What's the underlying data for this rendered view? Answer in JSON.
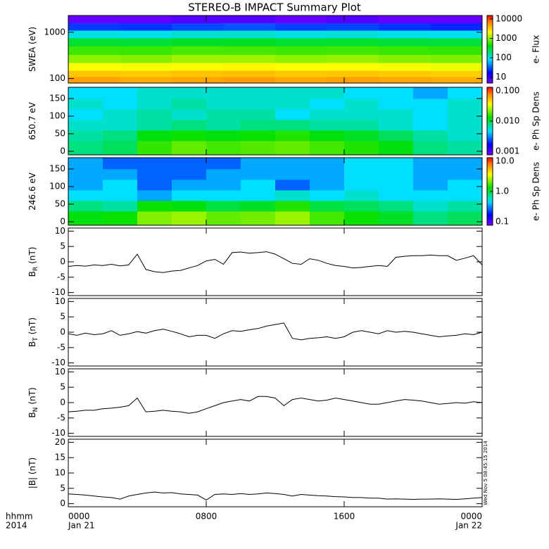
{
  "chart_data": [
    {
      "type": "heatmap",
      "title": "STEREO-B IMPACT Summary Plot",
      "ylabel": "SWEA (eV)",
      "zlabel": "e- Flux",
      "xlim": [
        0,
        24
      ],
      "xticks": [
        0,
        8,
        16,
        24
      ],
      "ylim": [
        80,
        2300
      ],
      "ylog": true,
      "yticks": [
        100,
        1000
      ],
      "y_edges": [
        80,
        110,
        150,
        220,
        330,
        500,
        750,
        1100,
        1600,
        2300
      ],
      "zlim": [
        5,
        15000
      ],
      "zlog": true,
      "zticks": [
        10,
        100,
        1000,
        10000
      ],
      "z": [
        [
          5000,
          4500,
          4800,
          5200,
          4600,
          5000,
          4700,
          4500
        ],
        [
          3500,
          3300,
          3600,
          3700,
          3400,
          3500,
          3300,
          3200
        ],
        [
          2000,
          1900,
          2100,
          2200,
          2000,
          2100,
          1900,
          1800
        ],
        [
          1000,
          950,
          1100,
          1100,
          1000,
          1050,
          950,
          900
        ],
        [
          600,
          580,
          650,
          640,
          600,
          620,
          580,
          560
        ],
        [
          300,
          290,
          320,
          330,
          300,
          310,
          290,
          280
        ],
        [
          100,
          95,
          110,
          115,
          100,
          105,
          95,
          90
        ],
        [
          25,
          24,
          28,
          30,
          26,
          27,
          24,
          22
        ],
        [
          6,
          6,
          7,
          7,
          6,
          7,
          6,
          6
        ]
      ]
    },
    {
      "type": "heatmap",
      "ylabel": "650.7 eV",
      "zlabel": "e- Ph Sp Dens",
      "xlim": [
        0,
        24
      ],
      "xticks": [
        0,
        8,
        16,
        24
      ],
      "ylim": [
        -10,
        182
      ],
      "yticks": [
        0,
        50,
        100,
        150
      ],
      "y_edges": [
        -10,
        30,
        60,
        90,
        120,
        150,
        182
      ],
      "zlim": [
        0.001,
        0.1
      ],
      "zlog": true,
      "zticks": [
        0.001,
        {
          "value": 0.01,
          "label": "0.010"
        },
        {
          "value": 0.1,
          "label": "0.100"
        }
      ],
      "z": [
        [
          0.008,
          0.009,
          0.015,
          0.018,
          0.016,
          0.017,
          0.018,
          0.016,
          0.014,
          0.012,
          0.008,
          0.007
        ],
        [
          0.007,
          0.008,
          0.012,
          0.013,
          0.012,
          0.013,
          0.014,
          0.012,
          0.011,
          0.009,
          0.007,
          0.006
        ],
        [
          0.006,
          0.006,
          0.007,
          0.008,
          0.007,
          0.008,
          0.008,
          0.007,
          0.007,
          0.006,
          0.005,
          0.006
        ],
        [
          0.005,
          0.006,
          0.007,
          0.006,
          0.007,
          0.007,
          0.005,
          0.006,
          0.006,
          0.006,
          0.005,
          0.006
        ],
        [
          0.006,
          0.005,
          0.006,
          0.007,
          0.006,
          0.006,
          0.006,
          0.005,
          0.006,
          0.005,
          0.005,
          0.006
        ],
        [
          0.005,
          0.005,
          0.006,
          0.006,
          0.006,
          0.006,
          0.006,
          0.006,
          0.005,
          0.005,
          0.004,
          0.005
        ]
      ]
    },
    {
      "type": "heatmap",
      "ylabel": "246.6 eV",
      "zlabel": "e- Ph Sp Dens",
      "xlim": [
        0,
        24
      ],
      "xticks": [
        0,
        8,
        16,
        24
      ],
      "ylim": [
        -10,
        182
      ],
      "yticks": [
        0,
        50,
        100,
        150
      ],
      "y_edges": [
        -10,
        30,
        60,
        90,
        120,
        150,
        182
      ],
      "zlim": [
        0.1,
        10
      ],
      "zlog": true,
      "zticks": [
        0.1,
        {
          "value": 1,
          "label": "1.0"
        },
        {
          "value": 10,
          "label": "10.0"
        }
      ],
      "z": [
        [
          1.2,
          1.3,
          2.0,
          2.2,
          1.8,
          1.9,
          2.2,
          1.6,
          1.3,
          1.1,
          0.8,
          0.9
        ],
        [
          0.8,
          0.7,
          1.3,
          1.2,
          1.0,
          1.1,
          1.4,
          1.0,
          0.9,
          0.8,
          0.6,
          0.7
        ],
        [
          0.5,
          0.5,
          0.4,
          0.5,
          0.5,
          0.5,
          0.6,
          0.5,
          0.6,
          0.5,
          0.5,
          0.5
        ],
        [
          0.4,
          0.5,
          0.3,
          0.4,
          0.4,
          0.5,
          0.3,
          0.4,
          0.5,
          0.5,
          0.4,
          0.5
        ],
        [
          0.4,
          0.4,
          0.3,
          0.3,
          0.4,
          0.4,
          0.4,
          0.4,
          0.5,
          0.5,
          0.4,
          0.4
        ],
        [
          0.4,
          0.3,
          0.3,
          0.3,
          0.3,
          0.4,
          0.4,
          0.4,
          0.5,
          0.5,
          0.4,
          0.4
        ]
      ]
    },
    {
      "type": "line",
      "ylabel": "B",
      "ylabel_sub": "R",
      "ylabel_unit": "(nT)",
      "color": "#000000",
      "xlim": [
        0,
        24
      ],
      "xticks": [
        0,
        8,
        16,
        24
      ],
      "ylim": [
        -11,
        11
      ],
      "yticks": [
        -10,
        -5,
        0,
        5,
        10
      ],
      "x": [
        0,
        0.5,
        1,
        1.5,
        2,
        2.5,
        3,
        3.5,
        4,
        4.5,
        5,
        5.5,
        6,
        6.5,
        7,
        7.5,
        8,
        8.5,
        9,
        9.5,
        10,
        10.5,
        11,
        11.5,
        12,
        12.5,
        13,
        13.5,
        14,
        14.5,
        15,
        15.5,
        16,
        16.5,
        17,
        17.5,
        18,
        18.5,
        19,
        19.5,
        20,
        20.5,
        21,
        21.5,
        22,
        22.5,
        23,
        23.5,
        24
      ],
      "values": [
        -1.5,
        -1.2,
        -1.4,
        -1.0,
        -1.2,
        -0.8,
        -1.3,
        -1.0,
        2.5,
        -2.5,
        -3.2,
        -3.5,
        -3.0,
        -2.8,
        -2.0,
        -1.2,
        0.3,
        0.8,
        -0.8,
        3.0,
        3.2,
        2.8,
        3.0,
        3.3,
        2.5,
        1.0,
        -0.5,
        -0.8,
        1.0,
        0.5,
        -0.5,
        -1.2,
        -1.5,
        -2.0,
        -1.8,
        -1.5,
        -1.2,
        -1.5,
        1.5,
        1.8,
        2.0,
        2.0,
        2.2,
        2.0,
        2.0,
        0.5,
        1.2,
        2.0,
        -1.0
      ]
    },
    {
      "type": "line",
      "ylabel": "B",
      "ylabel_sub": "T",
      "ylabel_unit": "(nT)",
      "color": "#000000",
      "xlim": [
        0,
        24
      ],
      "xticks": [
        0,
        8,
        16,
        24
      ],
      "ylim": [
        -11,
        11
      ],
      "yticks": [
        -10,
        -5,
        0,
        5,
        10
      ],
      "x": [
        0,
        0.5,
        1,
        1.5,
        2,
        2.5,
        3,
        3.5,
        4,
        4.5,
        5,
        5.5,
        6,
        6.5,
        7,
        7.5,
        8,
        8.5,
        9,
        9.5,
        10,
        10.5,
        11,
        11.5,
        12,
        12.5,
        13,
        13.5,
        14,
        14.5,
        15,
        15.5,
        16,
        16.5,
        17,
        17.5,
        18,
        18.5,
        19,
        19.5,
        20,
        20.5,
        21,
        21.5,
        22,
        22.5,
        23,
        23.5,
        24
      ],
      "values": [
        -0.5,
        -1.0,
        -0.3,
        -0.8,
        -0.5,
        0.5,
        -1.0,
        -0.5,
        0.2,
        -0.3,
        0.5,
        1.0,
        0.3,
        -0.5,
        -1.5,
        -1.0,
        -1.0,
        -2.0,
        -0.5,
        0.5,
        0.3,
        0.8,
        1.2,
        2.0,
        2.5,
        3.0,
        -2.0,
        -2.5,
        -2.0,
        -1.8,
        -1.5,
        -2.0,
        -1.5,
        0.0,
        0.5,
        0.0,
        -0.5,
        0.5,
        0.0,
        0.3,
        0.0,
        -0.5,
        -1.0,
        -1.5,
        -1.2,
        -1.0,
        -0.5,
        -0.8,
        0.0
      ]
    },
    {
      "type": "line",
      "ylabel": "B",
      "ylabel_sub": "N",
      "ylabel_unit": "(nT)",
      "color": "#000000",
      "xlim": [
        0,
        24
      ],
      "xticks": [
        0,
        8,
        16,
        24
      ],
      "ylim": [
        -11,
        11
      ],
      "yticks": [
        -10,
        -5,
        0,
        5,
        10
      ],
      "x": [
        0,
        0.5,
        1,
        1.5,
        2,
        2.5,
        3,
        3.5,
        4,
        4.5,
        5,
        5.5,
        6,
        6.5,
        7,
        7.5,
        8,
        8.5,
        9,
        9.5,
        10,
        10.5,
        11,
        11.5,
        12,
        12.5,
        13,
        13.5,
        14,
        14.5,
        15,
        15.5,
        16,
        16.5,
        17,
        17.5,
        18,
        18.5,
        19,
        19.5,
        20,
        20.5,
        21,
        21.5,
        22,
        22.5,
        23,
        23.5,
        24
      ],
      "values": [
        -3.0,
        -2.8,
        -2.5,
        -2.5,
        -2.0,
        -1.8,
        -1.5,
        -1.0,
        1.5,
        -3.0,
        -2.8,
        -2.5,
        -2.8,
        -3.0,
        -3.5,
        -3.0,
        -2.0,
        -1.0,
        0.0,
        0.5,
        1.0,
        0.5,
        2.0,
        2.0,
        1.5,
        -1.0,
        1.0,
        1.5,
        1.0,
        0.5,
        0.8,
        1.5,
        1.0,
        0.5,
        0.0,
        -0.5,
        -0.5,
        0.0,
        0.5,
        1.0,
        0.8,
        0.5,
        0.0,
        -0.5,
        -0.3,
        0.0,
        -0.2,
        0.3,
        0.0
      ]
    },
    {
      "type": "line",
      "ylabel": "|B| (nT)",
      "color": "#000000",
      "xlim": [
        0,
        24
      ],
      "xticks": [
        {
          "value": 0,
          "label": "0000"
        },
        {
          "value": 8,
          "label": "0800"
        },
        {
          "value": 16,
          "label": "1600"
        },
        {
          "value": 24,
          "label": "0000"
        }
      ],
      "xlabel": "hhmm",
      "xlabel_year": "2014",
      "start_date": "Jan 21",
      "end_date": "Jan 22",
      "annotation": "Wed Nov 5 08:45:15 2014",
      "ylim": [
        -1,
        21
      ],
      "yticks": [
        0,
        5,
        10,
        15,
        20
      ],
      "x": [
        0,
        0.5,
        1,
        1.5,
        2,
        2.5,
        3,
        3.5,
        4,
        4.5,
        5,
        5.5,
        6,
        6.5,
        7,
        7.5,
        8,
        8.5,
        9,
        9.5,
        10,
        10.5,
        11,
        11.5,
        12,
        12.5,
        13,
        13.5,
        14,
        14.5,
        15,
        15.5,
        16,
        16.5,
        17,
        17.5,
        18,
        18.5,
        19,
        19.5,
        20,
        20.5,
        21,
        21.5,
        22,
        22.5,
        23,
        23.5,
        24
      ],
      "values": [
        3.2,
        3.0,
        2.8,
        2.5,
        2.2,
        2.0,
        1.5,
        2.5,
        3.0,
        3.5,
        3.8,
        3.5,
        3.6,
        3.2,
        3.0,
        2.8,
        1.2,
        3.0,
        3.2,
        3.0,
        3.3,
        3.0,
        3.2,
        3.5,
        3.3,
        3.0,
        2.5,
        3.0,
        2.8,
        2.6,
        2.5,
        2.3,
        2.2,
        2.0,
        2.0,
        1.8,
        1.8,
        1.5,
        1.6,
        1.5,
        1.4,
        1.5,
        1.5,
        1.6,
        1.5,
        1.4,
        1.6,
        1.8,
        2.0
      ]
    }
  ]
}
